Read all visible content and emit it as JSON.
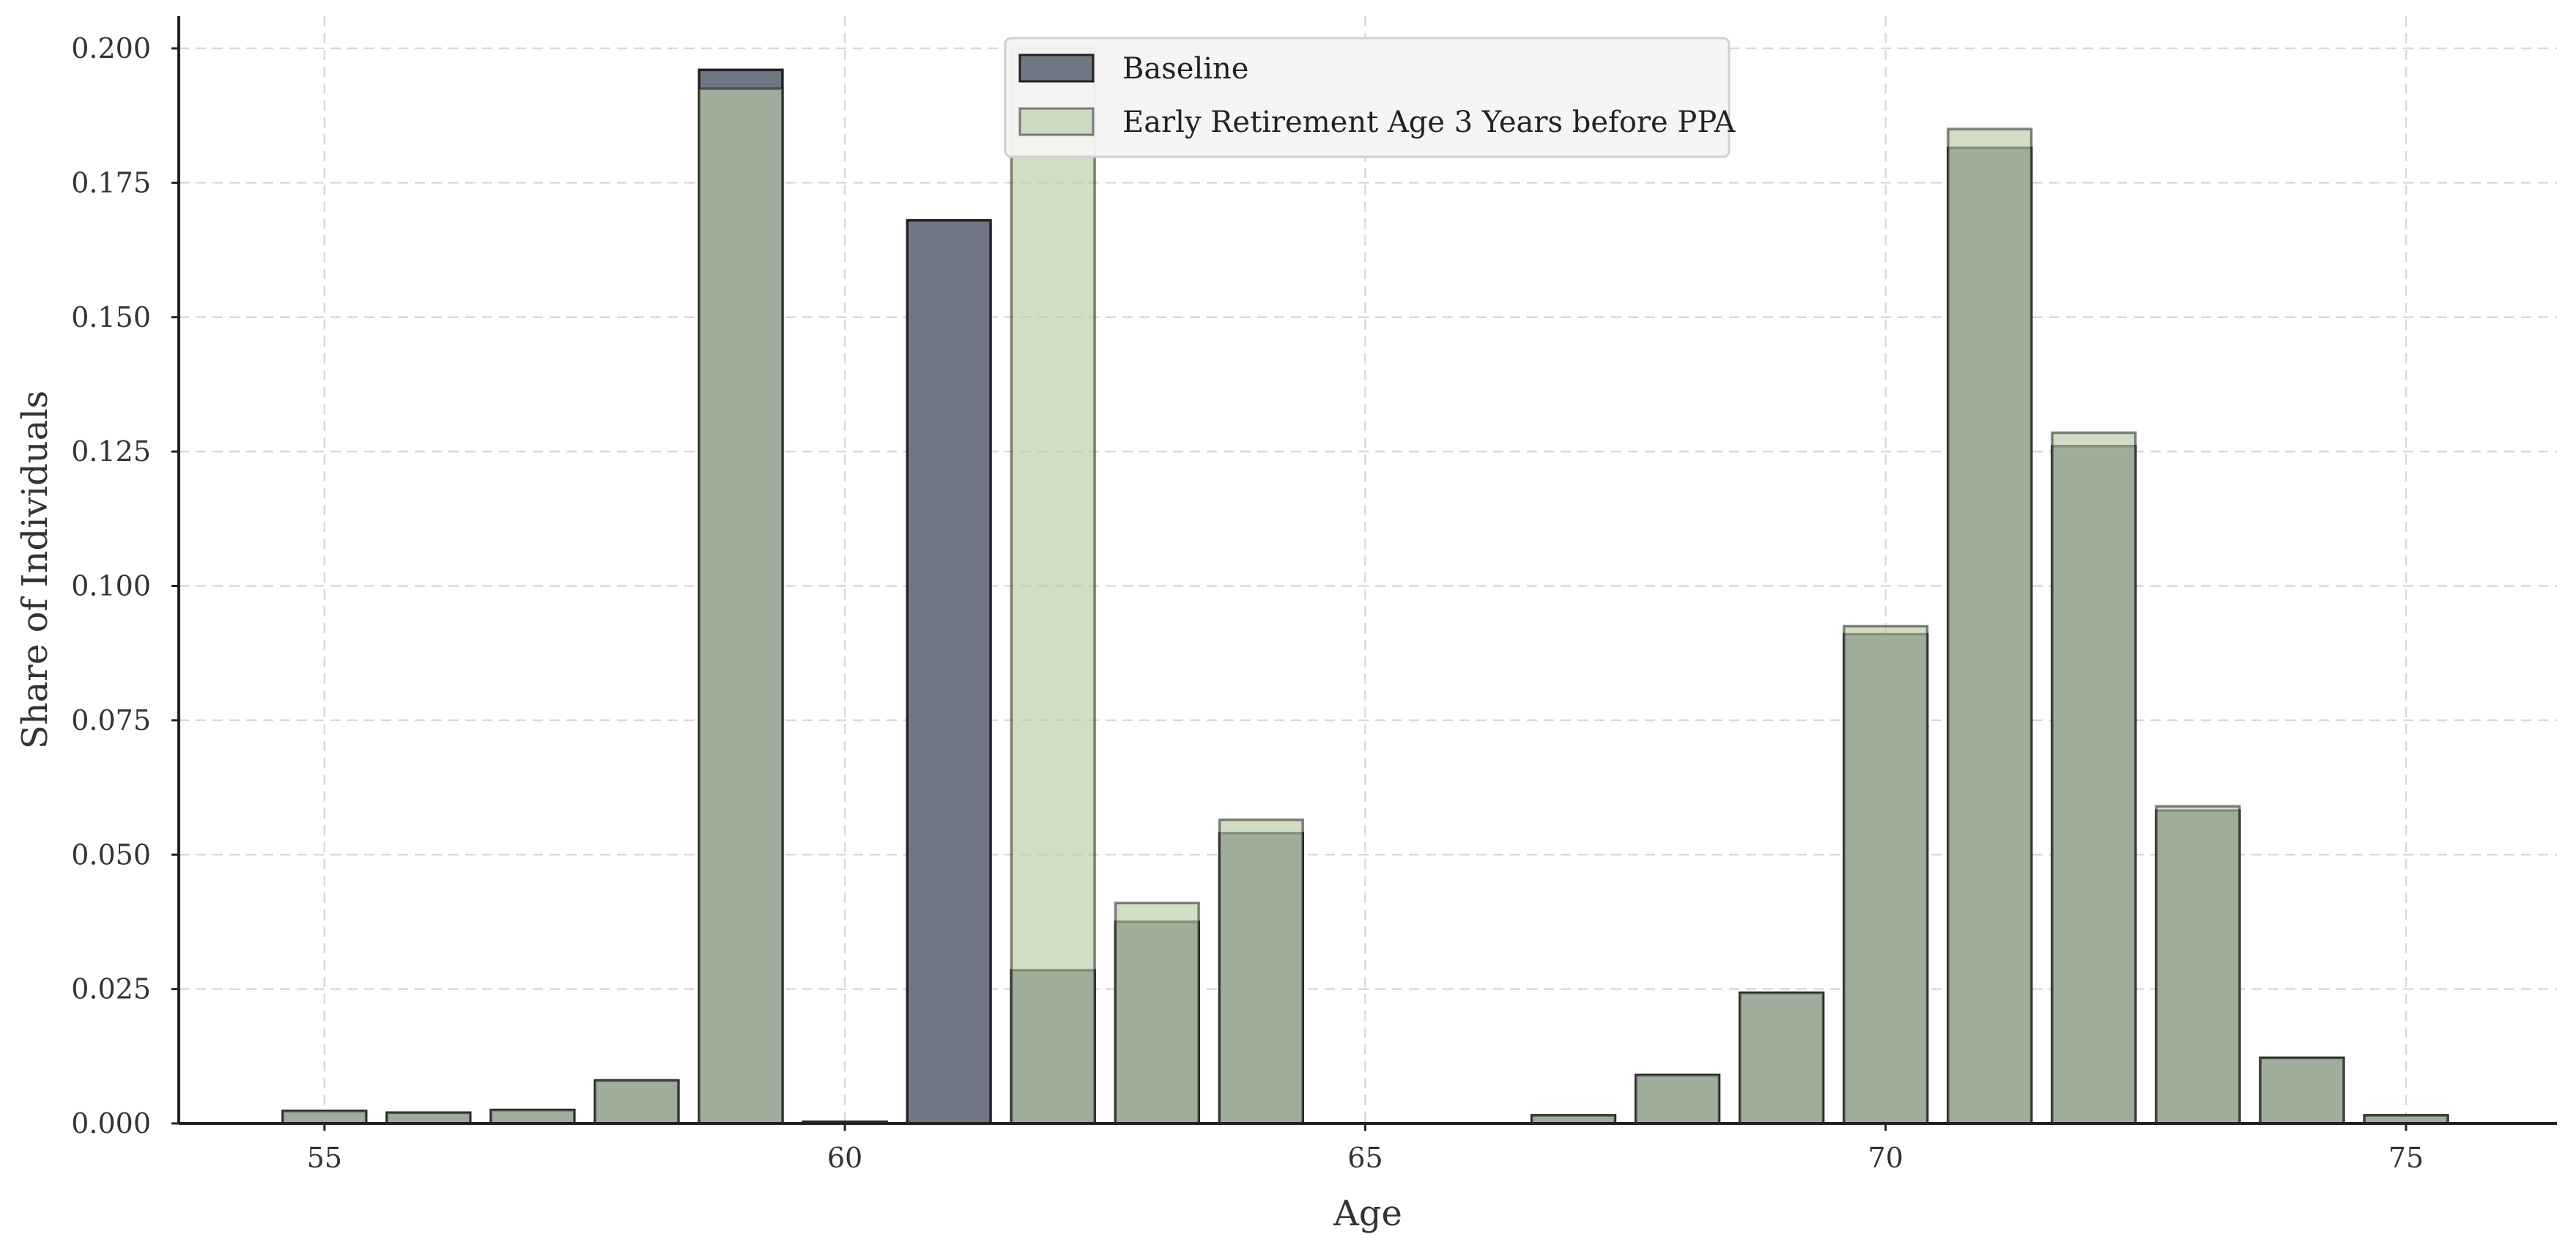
{
  "chart_data": {
    "type": "bar",
    "title": "",
    "xlabel": "Age",
    "ylabel": "Share of Individuals",
    "xlim": [
      53.6,
      76.45
    ],
    "ylim": [
      0,
      0.206
    ],
    "x_ticks": [
      55,
      60,
      65,
      70,
      75
    ],
    "y_ticks": [
      0.0,
      0.025,
      0.05,
      0.075,
      0.1,
      0.125,
      0.15,
      0.175,
      0.2
    ],
    "y_tick_labels": [
      "0.000",
      "0.025",
      "0.050",
      "0.075",
      "0.100",
      "0.125",
      "0.150",
      "0.175",
      "0.200"
    ],
    "grid": true,
    "legend_position": "top-center",
    "x": [
      55,
      56,
      57,
      58,
      59,
      60,
      61,
      62,
      63,
      64,
      65,
      66,
      67,
      68,
      69,
      70,
      71,
      72,
      73,
      74,
      75
    ],
    "series": [
      {
        "name": "Baseline",
        "color": "#707684",
        "values": [
          0.0023,
          0.002,
          0.0025,
          0.008,
          0.196,
          0.0003,
          0.168,
          0.0285,
          0.0375,
          0.054,
          0.0,
          0.0,
          0.0015,
          0.009,
          0.0243,
          0.091,
          0.1815,
          0.126,
          0.0582,
          0.0122,
          0.0015
        ]
      },
      {
        "name": "Early Retirement Age 3 Years before PPA",
        "color": "#b8cca6",
        "values": [
          0.0023,
          0.002,
          0.0025,
          0.008,
          0.1925,
          0.0003,
          0.0,
          0.2,
          0.041,
          0.0565,
          0.0,
          0.0,
          0.0015,
          0.009,
          0.0243,
          0.0925,
          0.185,
          0.1285,
          0.059,
          0.0122,
          0.0015
        ]
      }
    ]
  }
}
